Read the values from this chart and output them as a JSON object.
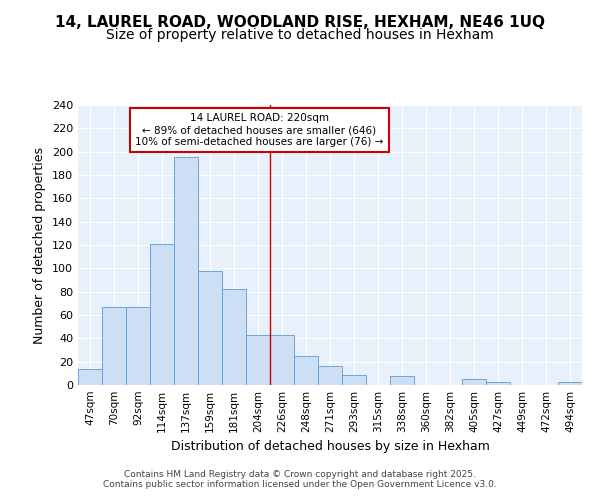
{
  "title": "14, LAUREL ROAD, WOODLAND RISE, HEXHAM, NE46 1UQ",
  "subtitle": "Size of property relative to detached houses in Hexham",
  "xlabel": "Distribution of detached houses by size in Hexham",
  "ylabel": "Number of detached properties",
  "categories": [
    "47sqm",
    "70sqm",
    "92sqm",
    "114sqm",
    "137sqm",
    "159sqm",
    "181sqm",
    "204sqm",
    "226sqm",
    "248sqm",
    "271sqm",
    "293sqm",
    "315sqm",
    "338sqm",
    "360sqm",
    "382sqm",
    "405sqm",
    "427sqm",
    "449sqm",
    "472sqm",
    "494sqm"
  ],
  "values": [
    14,
    67,
    67,
    121,
    195,
    98,
    82,
    43,
    43,
    25,
    16,
    9,
    0,
    8,
    0,
    0,
    5,
    3,
    0,
    0,
    3
  ],
  "bar_color": "#ccdff5",
  "bar_edge_color": "#5b9bd5",
  "background_color": "#e8f0fb",
  "grid_color": "#ffffff",
  "annotation_line1": "14 LAUREL ROAD: 220sqm",
  "annotation_line2": "← 89% of detached houses are smaller (646)",
  "annotation_line3": "10% of semi-detached houses are larger (76) →",
  "annotation_box_edge": "#cc0000",
  "vline_color": "#cc0000",
  "footer": "Contains HM Land Registry data © Crown copyright and database right 2025.\nContains public sector information licensed under the Open Government Licence v3.0.",
  "ylim": [
    0,
    240
  ],
  "yticks": [
    0,
    20,
    40,
    60,
    80,
    100,
    120,
    140,
    160,
    180,
    200,
    220,
    240
  ],
  "vline_index": 8,
  "title_fontsize": 11,
  "subtitle_fontsize": 10,
  "xlabel_fontsize": 9,
  "ylabel_fontsize": 9,
  "fig_bg": "#ffffff",
  "tick_fontsize": 8,
  "xtick_fontsize": 7.5
}
